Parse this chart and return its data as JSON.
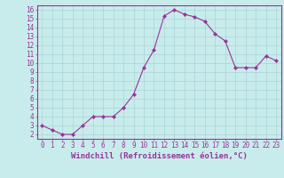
{
  "x": [
    0,
    1,
    2,
    3,
    4,
    5,
    6,
    7,
    8,
    9,
    10,
    11,
    12,
    13,
    14,
    15,
    16,
    17,
    18,
    19,
    20,
    21,
    22,
    23
  ],
  "y": [
    3.0,
    2.5,
    2.0,
    2.0,
    3.0,
    4.0,
    4.0,
    4.0,
    5.0,
    6.5,
    9.5,
    11.5,
    15.3,
    16.0,
    15.5,
    15.2,
    14.7,
    13.3,
    12.5,
    9.5,
    9.5,
    9.5,
    10.8,
    10.3
  ],
  "line_color": "#993399",
  "marker": "D",
  "marker_size": 2.0,
  "bg_color": "#c8ecec",
  "grid_color": "#aad4d4",
  "axis_color": "#993399",
  "spine_color": "#993399",
  "xlabel": "Windchill (Refroidissement éolien,°C)",
  "ylabel_ticks": [
    2,
    3,
    4,
    5,
    6,
    7,
    8,
    9,
    10,
    11,
    12,
    13,
    14,
    15,
    16
  ],
  "xlim": [
    -0.5,
    23.5
  ],
  "ylim": [
    1.5,
    16.5
  ],
  "xticks": [
    0,
    1,
    2,
    3,
    4,
    5,
    6,
    7,
    8,
    9,
    10,
    11,
    12,
    13,
    14,
    15,
    16,
    17,
    18,
    19,
    20,
    21,
    22,
    23
  ],
  "tick_fontsize": 5.5,
  "xlabel_fontsize": 6.5
}
